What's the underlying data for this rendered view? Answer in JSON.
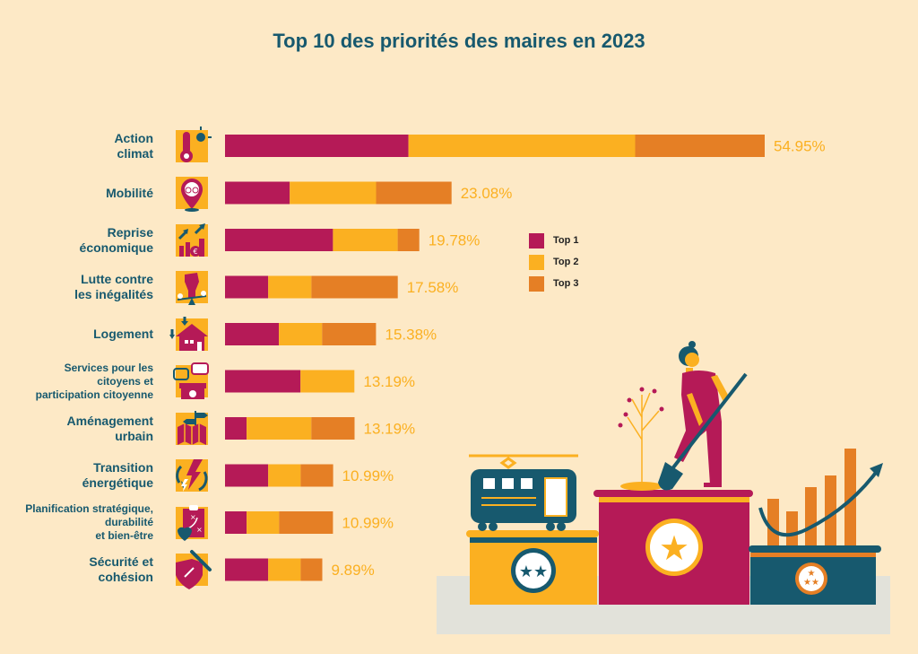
{
  "colors": {
    "background": "#fde9c6",
    "title": "#17596e",
    "top1": "#b51a57",
    "top2": "#fbb021",
    "top3": "#e57f25",
    "value_label": "#fbb021",
    "teal": "#17596e"
  },
  "chart_data": {
    "type": "bar",
    "orientation": "horizontal",
    "stacked": true,
    "title": "Top 10 des priorités des maires en 2023",
    "xlabel": "",
    "ylabel": "",
    "xlim": [
      0,
      55
    ],
    "grid": false,
    "legend_position": "right",
    "categories": [
      "Action climat",
      "Mobilité",
      "Reprise économique",
      "Lutte contre les inégalités",
      "Logement",
      "Services pour les citoyens et participation citoyenne",
      "Aménagement urbain",
      "Transition énergétique",
      "Planification stratégique, durabilité et bien-être",
      "Sécurité et cohésion"
    ],
    "category_lines": [
      [
        "Action",
        "climat"
      ],
      [
        "Mobilité"
      ],
      [
        "Reprise",
        "économique"
      ],
      [
        "Lutte contre",
        "les inégalités"
      ],
      [
        "Logement"
      ],
      [
        "Services pour les",
        "citoyens et",
        "participation citoyenne"
      ],
      [
        "Aménagement",
        "urbain"
      ],
      [
        "Transition",
        "énergétique"
      ],
      [
        "Planification stratégique,",
        "durabilité",
        "et bien-être"
      ],
      [
        "Sécurité et",
        "cohésion"
      ]
    ],
    "icons": [
      "thermometer-sun-icon",
      "bike-location-pin-icon",
      "growth-chart-euro-icon",
      "raised-fist-balance-icon",
      "house-icon",
      "speech-bubbles-info-desk-icon",
      "map-signpost-icon",
      "energy-lightning-cycle-icon",
      "clipboard-strategy-heart-icon",
      "shield-chain-link-icon"
    ],
    "series": [
      {
        "name": "Top 1",
        "values": [
          18.68,
          6.59,
          10.99,
          4.4,
          5.49,
          7.69,
          2.2,
          4.4,
          2.2,
          4.4
        ]
      },
      {
        "name": "Top 2",
        "values": [
          23.08,
          8.79,
          6.59,
          4.4,
          4.4,
          5.49,
          6.59,
          3.3,
          3.3,
          3.3
        ]
      },
      {
        "name": "Top 3",
        "values": [
          13.19,
          7.69,
          2.2,
          8.79,
          5.49,
          0,
          4.4,
          3.3,
          5.49,
          2.2
        ]
      }
    ],
    "totals": [
      54.95,
      23.08,
      19.78,
      17.58,
      15.38,
      13.19,
      13.19,
      10.99,
      10.99,
      9.89
    ],
    "total_labels": [
      "54.95%",
      "23.08%",
      "19.78%",
      "17.58%",
      "15.38%",
      "13.19%",
      "13.19%",
      "10.99%",
      "10.99%",
      "9.89%"
    ],
    "legend": [
      "Top 1",
      "Top 2",
      "Top 3"
    ]
  },
  "illustration": {
    "description": "podium with tram, woman planting tree, rising bar chart",
    "podium_ranks": [
      "2 stars",
      "1 star",
      "3 stars"
    ]
  }
}
